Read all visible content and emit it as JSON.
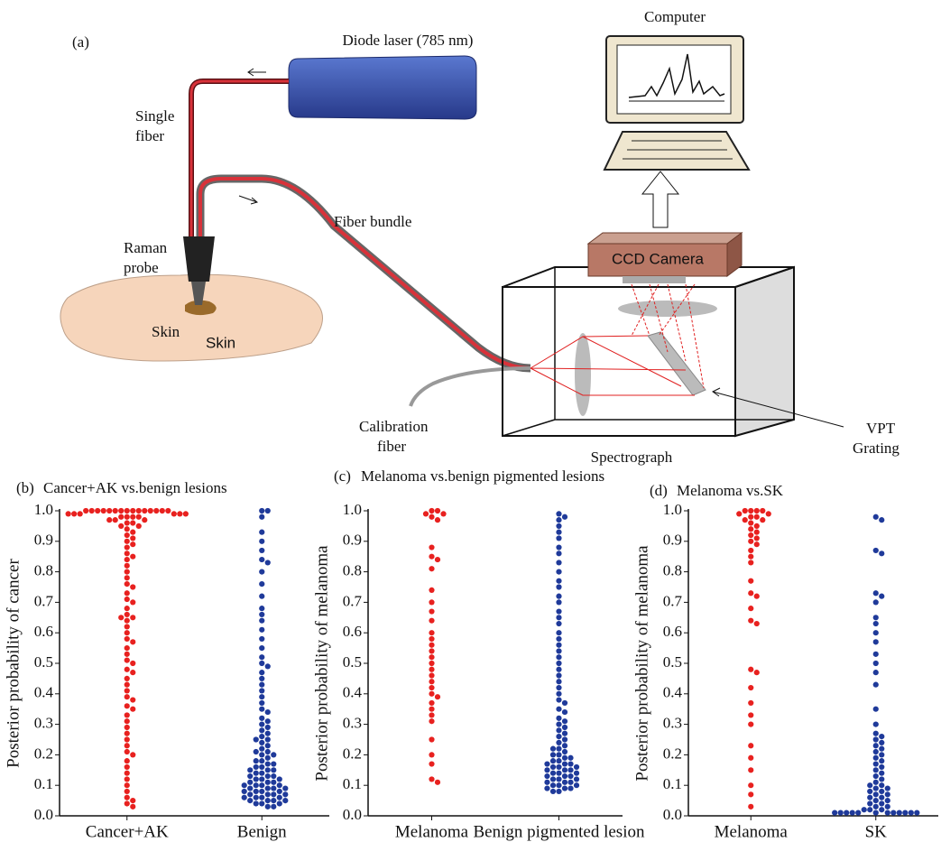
{
  "diagram": {
    "panel": "(a)",
    "laser": "Diode laser (785 nm)",
    "computer": "Computer",
    "single_fiber": [
      "Single",
      "fiber"
    ],
    "fiber_bundle": "Fiber bundle",
    "raman_probe": [
      "Raman",
      "probe"
    ],
    "skin_1": "Skin",
    "skin_2": "Skin",
    "ccd": "CCD Camera",
    "calibration_fiber": [
      "Calibration",
      "fiber"
    ],
    "spectrograph": "Spectrograph",
    "grating": [
      "VPT",
      "Grating"
    ]
  },
  "chart_data": [
    {
      "type": "swarm",
      "panel": "(b)",
      "title": "Cancer+AK vs.benign lesions",
      "ylabel": "Posterior probability of cancer",
      "categories": [
        "Cancer+AK",
        "Benign"
      ],
      "colors": [
        "#e8211f",
        "#1f3a9a"
      ],
      "ylim": [
        0,
        1
      ],
      "yticks": [
        {
          "value": 0,
          "label": "0.0"
        },
        0.1,
        0.2,
        0.3,
        0.4,
        0.5,
        0.6,
        0.7,
        0.8,
        0.9,
        {
          "value": 1,
          "label": "1.0"
        }
      ],
      "values": [
        [
          1,
          1,
          1,
          1,
          1,
          1,
          1,
          1,
          1,
          1,
          1,
          1,
          1,
          1,
          1,
          0.99,
          0.99,
          0.99,
          0.99,
          0.99,
          0.99,
          0.98,
          0.98,
          0.98,
          0.98,
          0.97,
          0.97,
          0.97,
          0.96,
          0.96,
          0.95,
          0.95,
          0.94,
          0.93,
          0.92,
          0.91,
          0.9,
          0.89,
          0.88,
          0.86,
          0.85,
          0.84,
          0.82,
          0.8,
          0.78,
          0.76,
          0.75,
          0.73,
          0.71,
          0.7,
          0.68,
          0.66,
          0.65,
          0.65,
          0.64,
          0.62,
          0.6,
          0.58,
          0.57,
          0.55,
          0.53,
          0.51,
          0.5,
          0.48,
          0.47,
          0.45,
          0.43,
          0.41,
          0.39,
          0.38,
          0.36,
          0.35,
          0.33,
          0.31,
          0.29,
          0.27,
          0.25,
          0.23,
          0.21,
          0.2,
          0.18,
          0.16,
          0.14,
          0.12,
          0.1,
          0.08,
          0.06,
          0.05,
          0.04,
          0.03
        ],
        [
          1,
          1,
          0.98,
          0.93,
          0.9,
          0.87,
          0.84,
          0.83,
          0.8,
          0.76,
          0.72,
          0.68,
          0.66,
          0.64,
          0.61,
          0.58,
          0.55,
          0.52,
          0.5,
          0.49,
          0.47,
          0.45,
          0.43,
          0.41,
          0.39,
          0.37,
          0.35,
          0.34,
          0.32,
          0.31,
          0.3,
          0.29,
          0.28,
          0.27,
          0.26,
          0.25,
          0.25,
          0.24,
          0.23,
          0.22,
          0.21,
          0.21,
          0.2,
          0.2,
          0.19,
          0.18,
          0.18,
          0.17,
          0.17,
          0.16,
          0.16,
          0.15,
          0.15,
          0.15,
          0.14,
          0.14,
          0.13,
          0.13,
          0.13,
          0.12,
          0.12,
          0.12,
          0.11,
          0.11,
          0.11,
          0.1,
          0.1,
          0.1,
          0.1,
          0.09,
          0.09,
          0.09,
          0.09,
          0.08,
          0.08,
          0.08,
          0.08,
          0.07,
          0.07,
          0.07,
          0.07,
          0.06,
          0.06,
          0.06,
          0.06,
          0.05,
          0.05,
          0.05,
          0.05,
          0.04,
          0.04,
          0.04,
          0.03,
          0.03
        ]
      ]
    },
    {
      "type": "swarm",
      "panel": "(c)",
      "title": "Melanoma vs.benign pigmented lesions",
      "ylabel": "Posterior probability of melanoma",
      "categories": [
        "Melanoma",
        "Benign pigmented lesion"
      ],
      "colors": [
        "#e8211f",
        "#1f3a9a"
      ],
      "ylim": [
        0,
        1
      ],
      "yticks": [
        {
          "value": 0,
          "label": "0.0"
        },
        0.1,
        0.2,
        0.3,
        0.4,
        0.5,
        0.6,
        0.7,
        0.8,
        0.9,
        {
          "value": 1,
          "label": "1.0"
        }
      ],
      "values": [
        [
          1,
          1,
          0.99,
          0.99,
          0.98,
          0.97,
          0.88,
          0.85,
          0.84,
          0.81,
          0.74,
          0.7,
          0.67,
          0.64,
          0.6,
          0.58,
          0.56,
          0.54,
          0.52,
          0.5,
          0.48,
          0.46,
          0.44,
          0.42,
          0.4,
          0.39,
          0.37,
          0.35,
          0.33,
          0.31,
          0.25,
          0.2,
          0.17,
          0.12,
          0.11
        ],
        [
          0.99,
          0.98,
          0.97,
          0.95,
          0.93,
          0.91,
          0.88,
          0.86,
          0.83,
          0.8,
          0.77,
          0.75,
          0.72,
          0.7,
          0.67,
          0.65,
          0.63,
          0.6,
          0.58,
          0.56,
          0.54,
          0.52,
          0.5,
          0.48,
          0.46,
          0.44,
          0.42,
          0.4,
          0.38,
          0.37,
          0.35,
          0.34,
          0.32,
          0.31,
          0.3,
          0.29,
          0.28,
          0.27,
          0.26,
          0.25,
          0.24,
          0.23,
          0.22,
          0.22,
          0.21,
          0.2,
          0.2,
          0.19,
          0.19,
          0.18,
          0.18,
          0.17,
          0.17,
          0.17,
          0.16,
          0.16,
          0.16,
          0.15,
          0.15,
          0.15,
          0.14,
          0.14,
          0.14,
          0.13,
          0.13,
          0.13,
          0.12,
          0.12,
          0.12,
          0.11,
          0.11,
          0.11,
          0.1,
          0.1,
          0.1,
          0.09,
          0.09,
          0.09,
          0.08,
          0.08
        ]
      ]
    },
    {
      "type": "swarm",
      "panel": "(d)",
      "title": "Melanoma vs.SK",
      "ylabel": "Posterior probability of melanoma",
      "categories": [
        "Melanoma",
        "SK"
      ],
      "colors": [
        "#e8211f",
        "#1f3a9a"
      ],
      "ylim": [
        0,
        1
      ],
      "yticks": [
        {
          "value": 0,
          "label": "0.0"
        },
        0.1,
        0.2,
        0.3,
        0.4,
        0.5,
        0.6,
        0.7,
        0.8,
        0.9,
        {
          "value": 1,
          "label": "1.0"
        }
      ],
      "values": [
        [
          1,
          1,
          1,
          1,
          0.99,
          0.99,
          0.98,
          0.98,
          0.97,
          0.97,
          0.96,
          0.95,
          0.94,
          0.93,
          0.92,
          0.91,
          0.9,
          0.89,
          0.87,
          0.85,
          0.83,
          0.77,
          0.73,
          0.72,
          0.68,
          0.64,
          0.63,
          0.48,
          0.47,
          0.42,
          0.37,
          0.33,
          0.3,
          0.23,
          0.19,
          0.15,
          0.1,
          0.07,
          0.03
        ],
        [
          0.98,
          0.97,
          0.87,
          0.86,
          0.73,
          0.72,
          0.7,
          0.65,
          0.63,
          0.6,
          0.57,
          0.53,
          0.5,
          0.47,
          0.43,
          0.35,
          0.3,
          0.27,
          0.26,
          0.25,
          0.24,
          0.23,
          0.22,
          0.21,
          0.2,
          0.19,
          0.18,
          0.17,
          0.16,
          0.15,
          0.14,
          0.13,
          0.12,
          0.11,
          0.1,
          0.1,
          0.09,
          0.09,
          0.08,
          0.08,
          0.07,
          0.07,
          0.06,
          0.06,
          0.05,
          0.05,
          0.04,
          0.04,
          0.03,
          0.03,
          0.02,
          0.02,
          0.02,
          0.01,
          0.01,
          0.01,
          0.01,
          0.01,
          0.01,
          0.01,
          0.01,
          0.01,
          0.01,
          0.01,
          0.01
        ]
      ]
    }
  ]
}
